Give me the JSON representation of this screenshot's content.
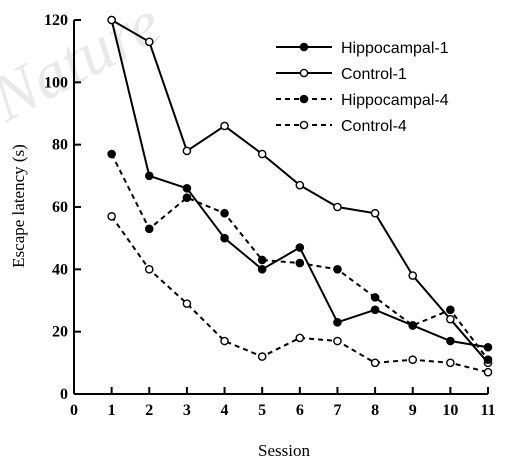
{
  "watermark": "Nature",
  "chart_data": {
    "type": "line",
    "title": "",
    "xlabel": "Session",
    "ylabel": "Escape latency (s)",
    "xlim": [
      0,
      11
    ],
    "ylim": [
      0,
      120
    ],
    "xticks": [
      0,
      1,
      2,
      3,
      4,
      5,
      6,
      7,
      8,
      9,
      10,
      11
    ],
    "yticks": [
      0,
      20,
      40,
      60,
      80,
      100,
      120
    ],
    "grid": false,
    "legend_position": "top-right",
    "x": [
      1,
      2,
      3,
      4,
      5,
      6,
      7,
      8,
      9,
      10,
      11
    ],
    "series": [
      {
        "name": "Hippocampal-1",
        "line": "solid",
        "marker": "filled",
        "values": [
          120,
          70,
          66,
          50,
          40,
          47,
          23,
          27,
          22,
          17,
          15
        ]
      },
      {
        "name": "Control-1",
        "line": "solid",
        "marker": "open",
        "values": [
          120,
          113,
          78,
          86,
          77,
          67,
          60,
          58,
          38,
          24,
          10
        ]
      },
      {
        "name": "Hippocampal-4",
        "line": "dashed",
        "marker": "filled",
        "values": [
          77,
          53,
          63,
          58,
          43,
          42,
          40,
          31,
          22,
          27,
          11
        ]
      },
      {
        "name": "Control-4",
        "line": "dashed",
        "marker": "open",
        "values": [
          57,
          40,
          29,
          17,
          12,
          18,
          17,
          10,
          11,
          10,
          7
        ]
      }
    ]
  }
}
